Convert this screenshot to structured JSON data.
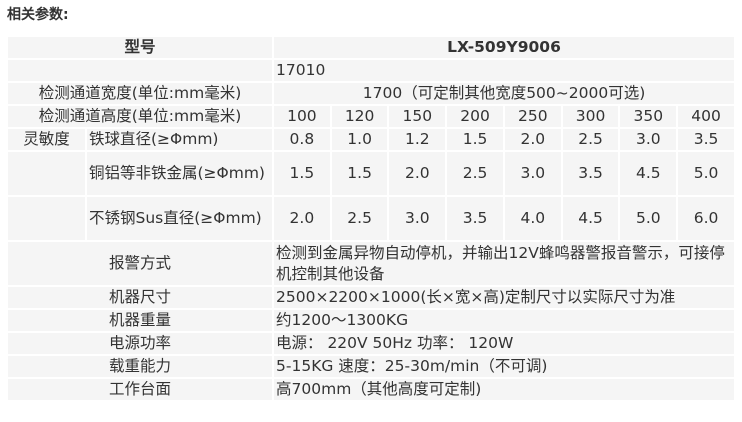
{
  "heading": "相关参数:",
  "model": {
    "label": "型号",
    "value": "LX-509Y9006"
  },
  "code": "17010",
  "width": {
    "label": "检测通道宽度(单位:mm毫米)",
    "value": "1700（可定制其他宽度500~2000可选)"
  },
  "height": {
    "label": "检测通道高度(单位:mm毫米)",
    "values": [
      "100",
      "120",
      "150",
      "200",
      "250",
      "300",
      "350",
      "400"
    ]
  },
  "sensitivity": {
    "label": "灵敏度",
    "rows": [
      {
        "label": "铁球直径(≥Φmm)",
        "values": [
          "0.8",
          "1.0",
          "1.2",
          "1.5",
          "2.0",
          "2.5",
          "3.0",
          "3.5"
        ]
      },
      {
        "label": "铜铝等非铁金属(≥Φmm)",
        "values": [
          "1.5",
          "1.5",
          "2.0",
          "2.5",
          "3.0",
          "3.5",
          "4.5",
          "5.0"
        ]
      },
      {
        "label": "不锈钢Sus直径(≥Φmm)",
        "values": [
          "2.0",
          "2.5",
          "3.0",
          "3.5",
          "4.0",
          "4.5",
          "5.0",
          "6.0"
        ]
      }
    ]
  },
  "specs": [
    {
      "label": "报警方式",
      "value": "检测到金属异物自动停机，并输出12V蜂鸣器警报音警示，可接停机控制其他设备"
    },
    {
      "label": "机器尺寸",
      "value": "2500×2200×1000(长×宽×高)定制尺寸以实际尺寸为准"
    },
    {
      "label": "机器重量",
      "value": "约1200～1300KG"
    },
    {
      "label": "电源功率",
      "value": "电源： 220V 50Hz  功率： 120W"
    },
    {
      "label": "载重能力",
      "value": "5-15KG  速度：25-30m/min（不可调)"
    },
    {
      "label": "工作台面",
      "value": "高700mm（其他高度可定制)"
    }
  ]
}
